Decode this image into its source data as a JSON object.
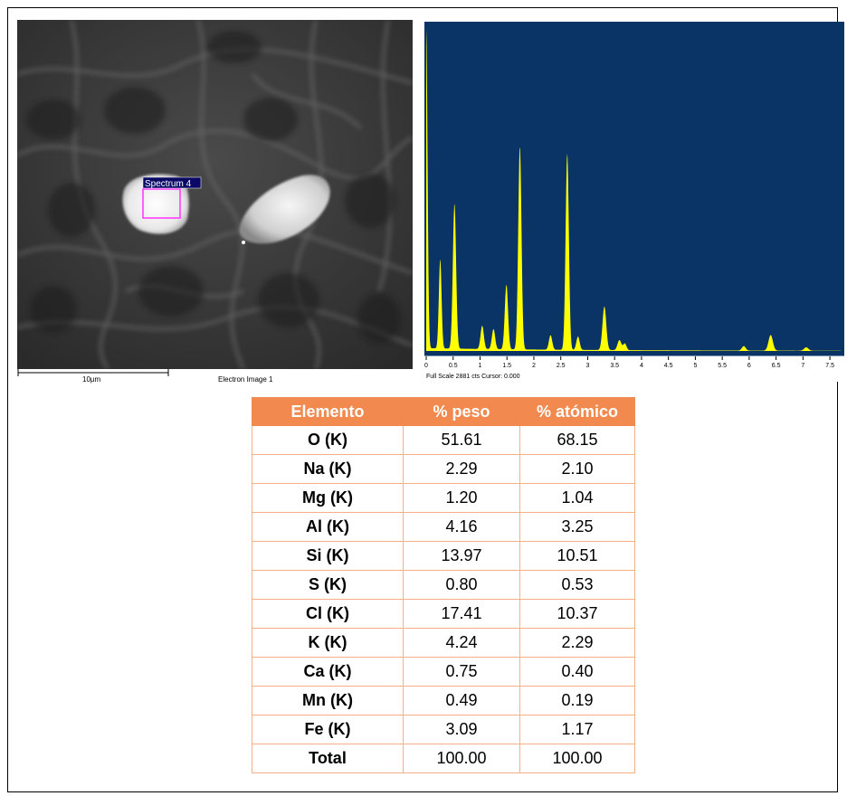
{
  "sem": {
    "spectrum_label": "Spectrum 4",
    "scale_label": "10µm",
    "image_label": "Electron Image 1"
  },
  "spectrum": {
    "background_color": "#0a3366",
    "fill_color": "#ffff00",
    "footer_text": "Full Scale 2881 cts Cursor: 0.000",
    "x_ticks": [
      "0",
      "0.5",
      "1",
      "1.5",
      "2",
      "2.5",
      "3",
      "3.5",
      "4",
      "4.5",
      "5",
      "5.5",
      "6",
      "6.5",
      "7",
      "7.5"
    ],
    "x_range": [
      0,
      7.7
    ],
    "y_range": [
      0,
      2881
    ],
    "peaks": [
      {
        "x": 0.0,
        "y": 2881,
        "w": 0.025
      },
      {
        "x": 0.26,
        "y": 800,
        "w": 0.025
      },
      {
        "x": 0.525,
        "y": 1300,
        "w": 0.03
      },
      {
        "x": 1.04,
        "y": 210,
        "w": 0.03
      },
      {
        "x": 1.25,
        "y": 180,
        "w": 0.03
      },
      {
        "x": 1.49,
        "y": 580,
        "w": 0.03
      },
      {
        "x": 1.74,
        "y": 1820,
        "w": 0.03
      },
      {
        "x": 2.31,
        "y": 130,
        "w": 0.03
      },
      {
        "x": 2.62,
        "y": 1760,
        "w": 0.03
      },
      {
        "x": 2.82,
        "y": 120,
        "w": 0.03
      },
      {
        "x": 3.31,
        "y": 390,
        "w": 0.035
      },
      {
        "x": 3.59,
        "y": 90,
        "w": 0.035
      },
      {
        "x": 3.69,
        "y": 60,
        "w": 0.03
      },
      {
        "x": 5.9,
        "y": 40,
        "w": 0.035
      },
      {
        "x": 6.4,
        "y": 140,
        "w": 0.04
      },
      {
        "x": 7.06,
        "y": 30,
        "w": 0.04
      }
    ],
    "noise_level": 25
  },
  "table": {
    "headers": [
      "Elemento",
      "% peso",
      "% atómico"
    ],
    "rows": [
      [
        "O (K)",
        "51.61",
        "68.15"
      ],
      [
        "Na (K)",
        "2.29",
        "2.10"
      ],
      [
        "Mg (K)",
        "1.20",
        "1.04"
      ],
      [
        "Al (K)",
        "4.16",
        "3.25"
      ],
      [
        "Si (K)",
        "13.97",
        "10.51"
      ],
      [
        "S (K)",
        "0.80",
        "0.53"
      ],
      [
        "Cl (K)",
        "17.41",
        "10.37"
      ],
      [
        "K (K)",
        "4.24",
        "2.29"
      ],
      [
        "Ca (K)",
        "0.75",
        "0.40"
      ],
      [
        "Mn (K)",
        "0.49",
        "0.19"
      ],
      [
        "Fe (K)",
        "3.09",
        "1.17"
      ],
      [
        "Total",
        "100.00",
        "100.00"
      ]
    ],
    "header_color": "#f2894e",
    "border_color": "#f5b083"
  }
}
